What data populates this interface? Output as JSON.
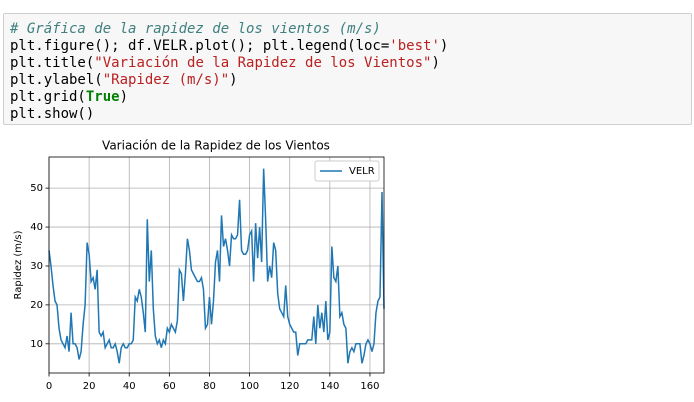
{
  "code": {
    "lines": [
      [
        "# Gráfica de la rapidez de los vientos (m/s)"
      ],
      [
        "plt.figure(); df.VELR.plot(); plt.legend(loc=",
        "'best'",
        ")"
      ],
      [
        "plt.title(",
        "\"Variación de la Rapidez de los Vientos\"",
        ")"
      ],
      [
        "plt.ylabel(",
        "\"Rapidez (m/s)\"",
        ")"
      ],
      [
        "plt.grid(",
        "True",
        ")"
      ],
      [
        "plt.show()"
      ]
    ]
  },
  "chart_data": {
    "type": "line",
    "title": "Variación de la Rapidez de los Vientos",
    "ylabel": "Rapidez (m/s)",
    "series": [
      {
        "name": "VELR",
        "color": "#1f77b4",
        "values": [
          34,
          30,
          25,
          21,
          20,
          14,
          11,
          10,
          9,
          12,
          8,
          18,
          10,
          10,
          9,
          6,
          8,
          15,
          20,
          36,
          33,
          26,
          27,
          24,
          29,
          13,
          12,
          13,
          9,
          10,
          11,
          9,
          9,
          10,
          8,
          5,
          9,
          10,
          9,
          9,
          10,
          10,
          11,
          22,
          21,
          24,
          22,
          18,
          13,
          42,
          26,
          34,
          19,
          12,
          10,
          11,
          9,
          11,
          10,
          14,
          13,
          15,
          14,
          13,
          16,
          29,
          28,
          21,
          28,
          37,
          34,
          29,
          28,
          27,
          26,
          26,
          27,
          24,
          14,
          15,
          22,
          15,
          21,
          31,
          34,
          26,
          43,
          35,
          37,
          34,
          30,
          38,
          37,
          37,
          38,
          47,
          34,
          33,
          33,
          34,
          38,
          39,
          26,
          41,
          32,
          40,
          31,
          55,
          42,
          26,
          30,
          27,
          36,
          34,
          23,
          19,
          18,
          17,
          25,
          17,
          15,
          14,
          13,
          13,
          7,
          10,
          10,
          10,
          10,
          11,
          11,
          11,
          17,
          10,
          20,
          14,
          18,
          13,
          21,
          11,
          13,
          35,
          27,
          26,
          30,
          17,
          18,
          15,
          14,
          5,
          8,
          9,
          8,
          10,
          10,
          10,
          5,
          7,
          10,
          11,
          10,
          8,
          10,
          18,
          21,
          22,
          49,
          19
        ]
      }
    ],
    "xlim": [
      0,
      167
    ],
    "ylim": [
      2.5,
      58
    ],
    "xticks": [
      0,
      20,
      40,
      60,
      80,
      100,
      120,
      140,
      160
    ],
    "yticks": [
      10,
      20,
      30,
      40,
      50
    ],
    "grid": true,
    "legend": "upper right"
  }
}
